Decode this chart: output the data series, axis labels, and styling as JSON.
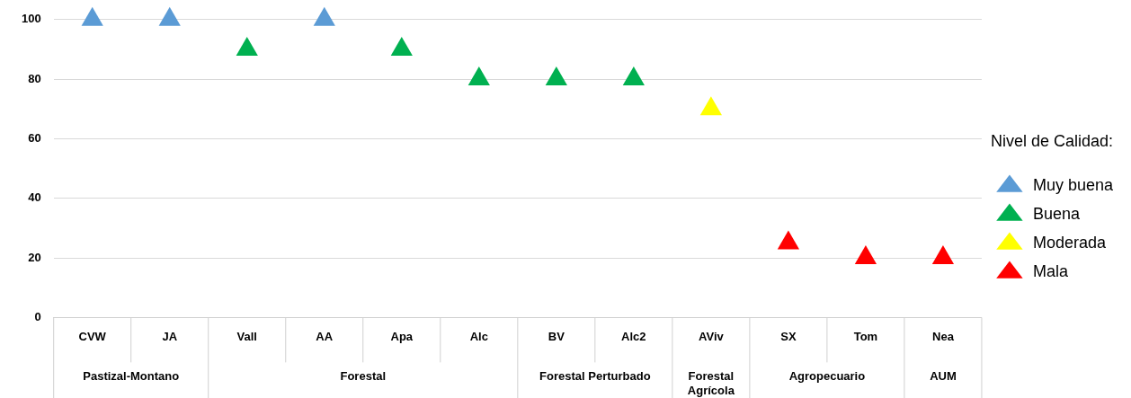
{
  "chart_data": {
    "type": "scatter",
    "categories": [
      "CVW",
      "JA",
      "Vall",
      "AA",
      "Apa",
      "Alc",
      "BV",
      "Alc2",
      "AViv",
      "SX",
      "Tom",
      "Nea"
    ],
    "series": [
      {
        "name": "Muy buena",
        "color": "#5b9bd5",
        "x": [
          "CVW",
          "JA",
          "AA"
        ],
        "values": [
          100,
          100,
          100
        ]
      },
      {
        "name": "Buena",
        "color": "#00b050",
        "x": [
          "Vall",
          "Apa",
          "Alc",
          "BV",
          "Alc2"
        ],
        "values": [
          90,
          90,
          80,
          80,
          80
        ]
      },
      {
        "name": "Moderada",
        "color": "#ffff00",
        "x": [
          "AViv"
        ],
        "values": [
          70
        ]
      },
      {
        "name": "Mala",
        "color": "#ff0000",
        "x": [
          "SX",
          "Tom",
          "Nea"
        ],
        "values": [
          25,
          20,
          20
        ]
      }
    ],
    "legend_title": "Nivel de Calidad:",
    "legend": "right",
    "marker": "triangle",
    "grid": "y",
    "ylim": [
      0,
      100
    ],
    "yticks": [
      0,
      20,
      40,
      60,
      80,
      100
    ],
    "annotations": [
      "Pastizal-Montano",
      "Forestal",
      "Forestal Perturbado",
      "Forestal Agrícola",
      "Agropecuario",
      "AUM"
    ]
  }
}
